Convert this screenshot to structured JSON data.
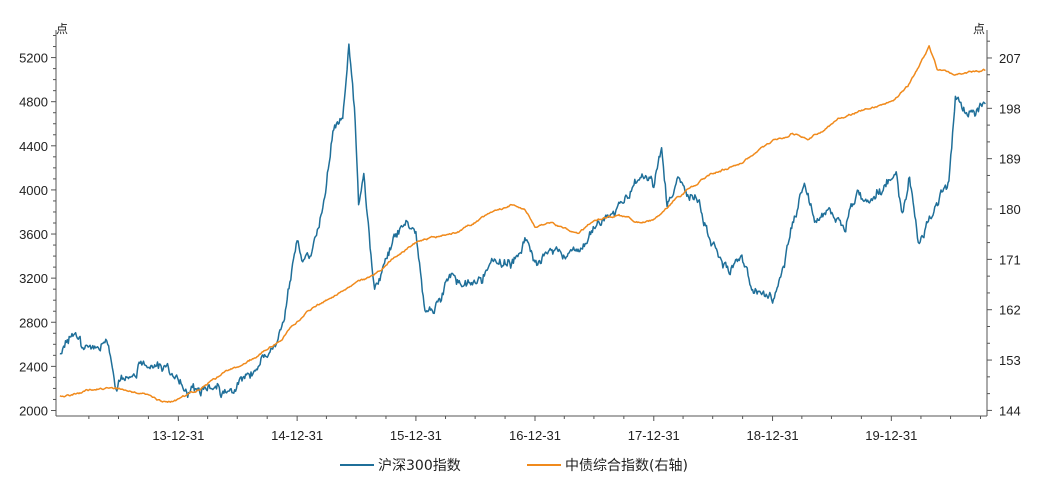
{
  "chart_data": {
    "type": "line",
    "title": "",
    "left_axis": {
      "unit": "点",
      "ticks": [
        2000,
        2400,
        2800,
        3200,
        3600,
        4000,
        4400,
        4800,
        5200
      ],
      "range": [
        1950,
        5450
      ]
    },
    "right_axis": {
      "unit": "点",
      "ticks": [
        144,
        153,
        162,
        171,
        180,
        189,
        198,
        207
      ],
      "range": [
        143,
        212
      ]
    },
    "x_ticks": [
      "13-12-31",
      "14-12-31",
      "15-12-31",
      "16-12-31",
      "17-12-31",
      "18-12-31",
      "19-12-31"
    ],
    "x_range": [
      "2012-12-20",
      "2020-10-20"
    ],
    "grid": false,
    "legend_position": "bottom",
    "series": [
      {
        "name": "沪深300指数",
        "axis": "left",
        "color": "#1f6f99",
        "points": [
          [
            "2013-01-01",
            2520
          ],
          [
            "2013-02-10",
            2730
          ],
          [
            "2013-03-15",
            2560
          ],
          [
            "2013-04-15",
            2520
          ],
          [
            "2013-05-25",
            2650
          ],
          [
            "2013-06-25",
            2200
          ],
          [
            "2013-07-20",
            2310
          ],
          [
            "2013-09-15",
            2450
          ],
          [
            "2013-10-25",
            2420
          ],
          [
            "2013-11-25",
            2360
          ],
          [
            "2013-12-31",
            2320
          ],
          [
            "2014-01-20",
            2230
          ],
          [
            "2014-02-15",
            2180
          ],
          [
            "2014-03-10",
            2150
          ],
          [
            "2014-04-10",
            2180
          ],
          [
            "2014-05-20",
            2150
          ],
          [
            "2014-06-25",
            2200
          ],
          [
            "2014-07-20",
            2310
          ],
          [
            "2014-08-25",
            2380
          ],
          [
            "2014-09-25",
            2450
          ],
          [
            "2014-10-25",
            2520
          ],
          [
            "2014-11-25",
            2900
          ],
          [
            "2014-12-31",
            3530
          ],
          [
            "2015-01-20",
            3400
          ],
          [
            "2015-02-20",
            3500
          ],
          [
            "2015-03-20",
            3850
          ],
          [
            "2015-04-20",
            4500
          ],
          [
            "2015-05-20",
            4650
          ],
          [
            "2015-06-08",
            5330
          ],
          [
            "2015-06-25",
            4700
          ],
          [
            "2015-07-08",
            3900
          ],
          [
            "2015-07-24",
            4200
          ],
          [
            "2015-08-26",
            3050
          ],
          [
            "2015-09-20",
            3250
          ],
          [
            "2015-10-25",
            3550
          ],
          [
            "2015-11-25",
            3700
          ],
          [
            "2015-12-31",
            3650
          ],
          [
            "2016-01-28",
            2880
          ],
          [
            "2016-02-28",
            2900
          ],
          [
            "2016-04-15",
            3250
          ],
          [
            "2016-05-20",
            3100
          ],
          [
            "2016-06-30",
            3150
          ],
          [
            "2016-08-20",
            3350
          ],
          [
            "2016-10-20",
            3320
          ],
          [
            "2016-11-30",
            3550
          ],
          [
            "2016-12-31",
            3320
          ],
          [
            "2017-03-15",
            3450
          ],
          [
            "2017-05-15",
            3400
          ],
          [
            "2017-07-20",
            3700
          ],
          [
            "2017-09-20",
            3840
          ],
          [
            "2017-11-22",
            4120
          ],
          [
            "2017-12-31",
            4030
          ],
          [
            "2018-01-24",
            4380
          ],
          [
            "2018-02-10",
            3870
          ],
          [
            "2018-03-15",
            4070
          ],
          [
            "2018-05-20",
            3850
          ],
          [
            "2018-06-25",
            3500
          ],
          [
            "2018-08-20",
            3300
          ],
          [
            "2018-09-25",
            3380
          ],
          [
            "2018-10-25",
            3100
          ],
          [
            "2018-12-31",
            3010
          ],
          [
            "2019-01-25",
            3180
          ],
          [
            "2019-02-25",
            3600
          ],
          [
            "2019-04-08",
            4100
          ],
          [
            "2019-05-15",
            3700
          ],
          [
            "2019-06-20",
            3780
          ],
          [
            "2019-08-10",
            3650
          ],
          [
            "2019-09-15",
            3950
          ],
          [
            "2019-10-25",
            3900
          ],
          [
            "2019-12-31",
            4100
          ],
          [
            "2020-01-15",
            4180
          ],
          [
            "2020-02-03",
            3750
          ],
          [
            "2020-02-25",
            4100
          ],
          [
            "2020-03-23",
            3530
          ],
          [
            "2020-05-10",
            3830
          ],
          [
            "2020-06-25",
            4100
          ],
          [
            "2020-07-15",
            4800
          ],
          [
            "2020-08-15",
            4700
          ],
          [
            "2020-09-10",
            4750
          ],
          [
            "2020-10-15",
            4780
          ]
        ]
      },
      {
        "name": "中债综合指数(右轴)",
        "axis": "right",
        "color": "#f08a1c",
        "points": [
          [
            "2013-01-01",
            146.5
          ],
          [
            "2013-03-20",
            147.4
          ],
          [
            "2013-06-10",
            148.2
          ],
          [
            "2013-07-25",
            147.5
          ],
          [
            "2013-09-15",
            146.8
          ],
          [
            "2013-11-20",
            145.5
          ],
          [
            "2013-12-31",
            145.8
          ],
          [
            "2014-02-20",
            147.4
          ],
          [
            "2014-04-15",
            149.5
          ],
          [
            "2014-06-10",
            151.5
          ],
          [
            "2014-07-25",
            152.4
          ],
          [
            "2014-09-15",
            154.2
          ],
          [
            "2014-11-15",
            157.0
          ],
          [
            "2014-12-31",
            160.0
          ],
          [
            "2015-02-20",
            162.5
          ],
          [
            "2015-04-20",
            164.5
          ],
          [
            "2015-06-25",
            166.5
          ],
          [
            "2015-08-25",
            168.2
          ],
          [
            "2015-10-25",
            171.5
          ],
          [
            "2015-12-31",
            174.0
          ],
          [
            "2016-02-25",
            175.0
          ],
          [
            "2016-05-10",
            176.0
          ],
          [
            "2016-07-25",
            178.5
          ],
          [
            "2016-10-25",
            181.0
          ],
          [
            "2016-11-30",
            180.0
          ],
          [
            "2016-12-31",
            177.0
          ],
          [
            "2017-02-25",
            177.5
          ],
          [
            "2017-05-15",
            175.5
          ],
          [
            "2017-06-30",
            178.0
          ],
          [
            "2017-09-15",
            179.0
          ],
          [
            "2017-11-25",
            177.5
          ],
          [
            "2017-12-31",
            178.0
          ],
          [
            "2018-03-15",
            182.0
          ],
          [
            "2018-06-15",
            186.0
          ],
          [
            "2018-09-15",
            188.0
          ],
          [
            "2018-12-31",
            192.0
          ],
          [
            "2019-02-25",
            193.5
          ],
          [
            "2019-04-20",
            192.5
          ],
          [
            "2019-07-20",
            196.0
          ],
          [
            "2019-09-25",
            197.5
          ],
          [
            "2019-11-25",
            198.5
          ],
          [
            "2019-12-31",
            199.0
          ],
          [
            "2020-02-20",
            202.0
          ],
          [
            "2020-03-15",
            204.5
          ],
          [
            "2020-04-25",
            209.0
          ],
          [
            "2020-05-20",
            205.0
          ],
          [
            "2020-07-15",
            204.0
          ],
          [
            "2020-08-20",
            204.5
          ],
          [
            "2020-10-15",
            204.8
          ]
        ]
      }
    ]
  }
}
